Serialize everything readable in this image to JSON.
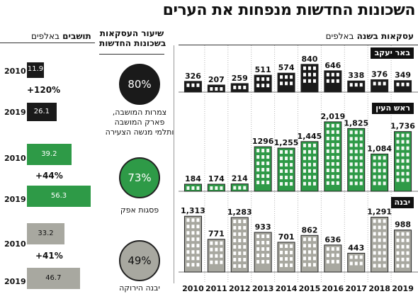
{
  "title": "השכונות החדשות מנפחות את הערים",
  "headers": {
    "transactions": "עסקאות בשנה",
    "transactions_unit": "באלפים",
    "share": "שיעור העסקאות",
    "share_line2": "בשכונות החדשות",
    "residents": "תושבים",
    "residents_unit": "באלפים"
  },
  "colors": {
    "dark": "#1a1a1a",
    "green": "#2e9a47",
    "gray": "#a8a8a0"
  },
  "chart_data": {
    "type": "bar",
    "categories": [
      "2010",
      "2011",
      "2012",
      "2013",
      "2014",
      "2015",
      "2016",
      "2017",
      "2018",
      "2019"
    ],
    "series": [
      {
        "name": "באר יעקב",
        "values": [
          326,
          207,
          259,
          511,
          574,
          840,
          646,
          338,
          376,
          349
        ],
        "color": "#1a1a1a",
        "labels": [
          "326",
          "207",
          "259",
          "511",
          "574",
          "840",
          "646",
          "338",
          "376",
          "349"
        ]
      },
      {
        "name": "ראש העין",
        "values": [
          184,
          174,
          214,
          1296,
          1255,
          1445,
          2019,
          1825,
          1084,
          1736
        ],
        "color": "#2e9a47",
        "labels": [
          "184",
          "174",
          "214",
          "1296",
          "1,255",
          "1,445",
          "2,019",
          "1,825",
          "1,084",
          "1,736"
        ]
      },
      {
        "name": "יבנה",
        "values": [
          1313,
          771,
          1283,
          933,
          701,
          862,
          636,
          443,
          1291,
          988
        ],
        "color": "#a8a8a0",
        "labels": [
          "1,313",
          "771",
          "1,283",
          "933",
          "701",
          "862",
          "636",
          "443",
          "1,291",
          "988"
        ]
      }
    ]
  },
  "share": [
    {
      "value": "80%",
      "label": "צמרות המושבה, פארק המושבה ותלמי מנשה הצעירה"
    },
    {
      "value": "73%",
      "label": "פסגות אפק"
    },
    {
      "value": "49%",
      "label": "יבנה הירוקה"
    }
  ],
  "residents": [
    {
      "y2010": "2010",
      "v2010": 11.9,
      "t2010": "11.9",
      "change": "+120%",
      "y2019": "2019",
      "v2019": 26.1,
      "t2019": "26.1"
    },
    {
      "y2010": "2010",
      "v2010": 39.2,
      "t2010": "39.2",
      "change": "+44%",
      "y2019": "2019",
      "v2019": 56.3,
      "t2019": "56.3"
    },
    {
      "y2010": "2010",
      "v2010": 33.2,
      "t2010": "33.2",
      "change": "+41%",
      "y2019": "2019",
      "v2019": 46.7,
      "t2019": "46.7"
    }
  ]
}
